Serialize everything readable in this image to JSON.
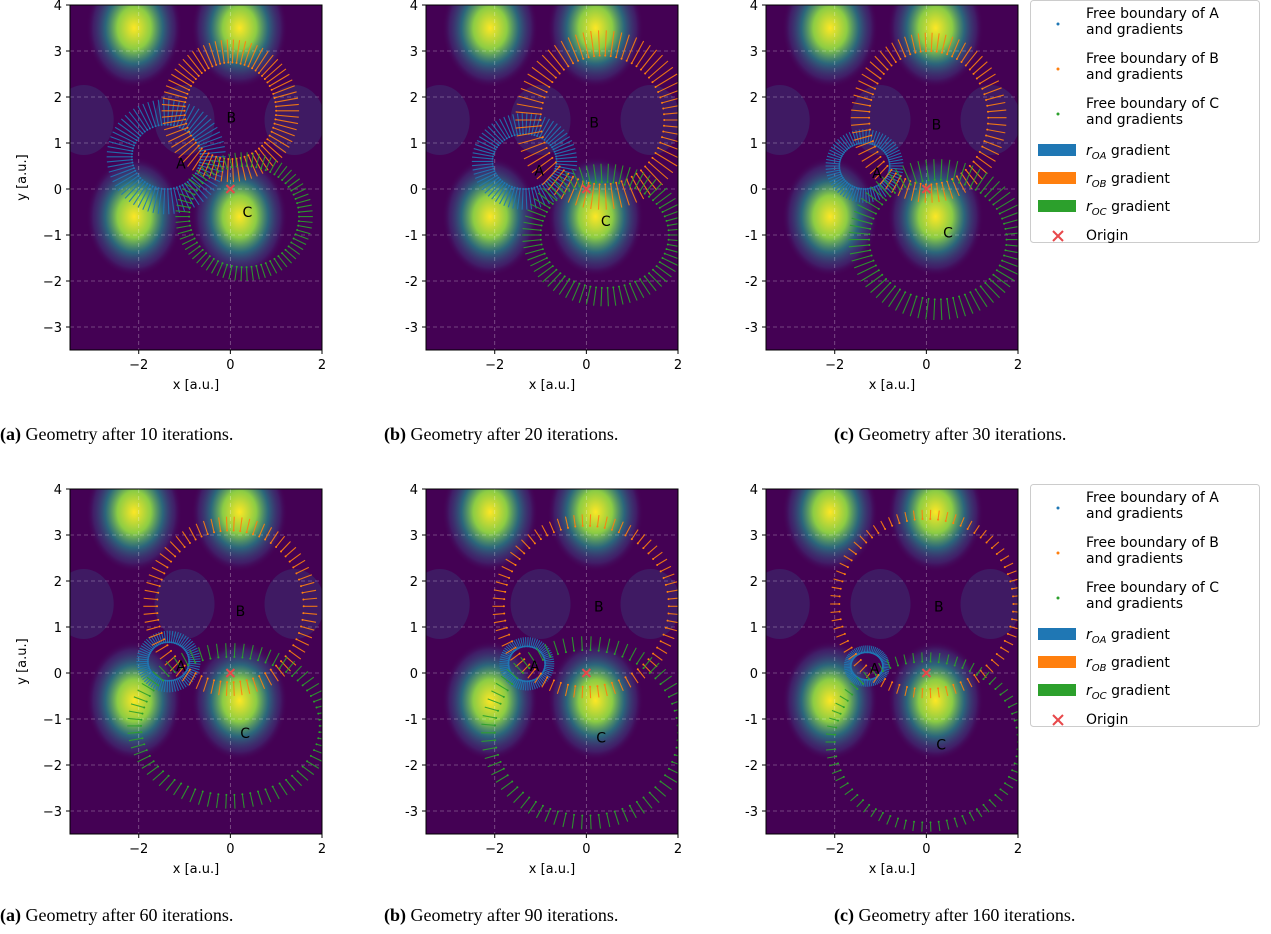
{
  "chart_data": [
    {
      "type": "scatter",
      "panel_tag": "(a)",
      "caption": "Geometry after 10 iterations.",
      "xlabel": "x [a.u.]",
      "ylabel": "y [a.u.]",
      "xlim": [
        -3.5,
        2
      ],
      "ylim": [
        -3.5,
        4
      ],
      "xticks": [
        "−2",
        "0",
        "2"
      ],
      "yticks": [
        "−3",
        "−2",
        "−1",
        "0",
        "1",
        "2",
        "3",
        "4"
      ],
      "points": {
        "A": [
          -1.25,
          0.55
        ],
        "B": [
          -0.15,
          1.55
        ],
        "C": [
          0.2,
          -0.5
        ]
      },
      "boundaries": [
        {
          "name": "A",
          "cx": -1.4,
          "cy": 0.7,
          "rx": 0.75,
          "ry": 0.7,
          "grad": 0.55
        },
        {
          "name": "B",
          "cx": 0.0,
          "cy": 1.7,
          "rx": 1.0,
          "ry": 1.05,
          "grad": 0.5
        },
        {
          "name": "C",
          "cx": 0.3,
          "cy": -0.6,
          "rx": 1.2,
          "ry": 1.1,
          "grad": 0.3
        }
      ]
    },
    {
      "type": "scatter",
      "panel_tag": "(b)",
      "caption": "Geometry after 20 iterations.",
      "xlabel": "x [a.u.]",
      "ylabel": "",
      "xlim": [
        -3.5,
        2
      ],
      "ylim": [
        -3.5,
        4
      ],
      "xticks": [
        "−2",
        "0",
        "2"
      ],
      "yticks": [
        "-3",
        "-2",
        "-1",
        "0",
        "1",
        "2",
        "3",
        "4"
      ],
      "points": {
        "A": [
          -1.2,
          0.4
        ],
        "B": [
          0.0,
          1.45
        ],
        "C": [
          0.25,
          -0.7
        ]
      },
      "boundaries": [
        {
          "name": "A",
          "cx": -1.35,
          "cy": 0.6,
          "rx": 0.7,
          "ry": 0.6,
          "grad": 0.45
        },
        {
          "name": "B",
          "cx": 0.35,
          "cy": 1.5,
          "rx": 1.35,
          "ry": 1.4,
          "grad": 0.55
        },
        {
          "name": "C",
          "cx": 0.4,
          "cy": -1.0,
          "rx": 1.4,
          "ry": 1.15,
          "grad": 0.4
        }
      ]
    },
    {
      "type": "scatter",
      "panel_tag": "(c)",
      "caption": "Geometry after 30 iterations.",
      "xlabel": "x [a.u.]",
      "ylabel": "",
      "xlim": [
        -3.5,
        2
      ],
      "ylim": [
        -3.5,
        4
      ],
      "xticks": [
        "−2",
        "0",
        "2"
      ],
      "yticks": [
        "-3",
        "-2",
        "-1",
        "0",
        "1",
        "2",
        "3",
        "4"
      ],
      "points": {
        "A": [
          -1.25,
          0.35
        ],
        "B": [
          0.05,
          1.4
        ],
        "C": [
          0.3,
          -0.95
        ]
      },
      "boundaries": [
        {
          "name": "A",
          "cx": -1.35,
          "cy": 0.5,
          "rx": 0.55,
          "ry": 0.5,
          "grad": 0.3
        },
        {
          "name": "B",
          "cx": 0.05,
          "cy": 1.55,
          "rx": 1.3,
          "ry": 1.45,
          "grad": 0.4
        },
        {
          "name": "C",
          "cx": 0.25,
          "cy": -1.1,
          "rx": 1.5,
          "ry": 1.3,
          "grad": 0.45
        }
      ]
    },
    {
      "type": "scatter",
      "panel_tag": "(a)",
      "caption": "Geometry after 60 iterations.",
      "xlabel": "x [a.u.]",
      "ylabel": "y [a.u.]",
      "xlim": [
        -3.5,
        2
      ],
      "ylim": [
        -3.5,
        4
      ],
      "xticks": [
        "−2",
        "0",
        "2"
      ],
      "yticks": [
        "−3",
        "−2",
        "−1",
        "0",
        "1",
        "2",
        "3",
        "4"
      ],
      "points": {
        "A": [
          -1.25,
          0.15
        ],
        "B": [
          0.05,
          1.35
        ],
        "C": [
          0.15,
          -1.3
        ]
      },
      "boundaries": [
        {
          "name": "A",
          "cx": -1.35,
          "cy": 0.25,
          "rx": 0.45,
          "ry": 0.42,
          "grad": 0.25
        },
        {
          "name": "B",
          "cx": 0.0,
          "cy": 1.45,
          "rx": 1.6,
          "ry": 1.65,
          "grad": 0.3
        },
        {
          "name": "C",
          "cx": 0.0,
          "cy": -1.15,
          "rx": 1.95,
          "ry": 1.5,
          "grad": 0.3
        }
      ]
    },
    {
      "type": "scatter",
      "panel_tag": "(b)",
      "caption": "Geometry after 90 iterations.",
      "xlabel": "x [a.u.]",
      "ylabel": "",
      "xlim": [
        -3.5,
        2
      ],
      "ylim": [
        -3.5,
        4
      ],
      "xticks": [
        "−2",
        "0",
        "2"
      ],
      "yticks": [
        "-3",
        "-2",
        "-1",
        "0",
        "1",
        "2",
        "3",
        "4"
      ],
      "points": {
        "A": [
          -1.3,
          0.15
        ],
        "B": [
          0.1,
          1.45
        ],
        "C": [
          0.15,
          -1.4
        ]
      },
      "boundaries": [
        {
          "name": "A",
          "cx": -1.3,
          "cy": 0.2,
          "rx": 0.4,
          "ry": 0.38,
          "grad": 0.2
        },
        {
          "name": "B",
          "cx": 0.0,
          "cy": 1.45,
          "rx": 1.8,
          "ry": 1.75,
          "grad": 0.25
        },
        {
          "name": "C",
          "cx": 0.0,
          "cy": -1.3,
          "rx": 2.0,
          "ry": 1.8,
          "grad": 0.3
        }
      ]
    },
    {
      "type": "scatter",
      "panel_tag": "(c)",
      "caption": "Geometry after 160 iterations.",
      "xlabel": "x [a.u.]",
      "ylabel": "",
      "xlim": [
        -3.5,
        2
      ],
      "ylim": [
        -3.5,
        4
      ],
      "xticks": [
        "−2",
        "0",
        "2"
      ],
      "yticks": [
        "-3",
        "-2",
        "-1",
        "0",
        "1",
        "2",
        "3",
        "4"
      ],
      "points": {
        "A": [
          -1.3,
          0.1
        ],
        "B": [
          0.1,
          1.45
        ],
        "C": [
          0.15,
          -1.55
        ]
      },
      "boundaries": [
        {
          "name": "A",
          "cx": -1.3,
          "cy": 0.15,
          "rx": 0.35,
          "ry": 0.3,
          "grad": 0.15
        },
        {
          "name": "B",
          "cx": 0.0,
          "cy": 1.5,
          "rx": 1.9,
          "ry": 1.85,
          "grad": 0.2
        },
        {
          "name": "C",
          "cx": 0.0,
          "cy": -1.5,
          "rx": 2.0,
          "ry": 1.75,
          "grad": 0.2
        }
      ]
    }
  ],
  "legend": {
    "entries": [
      {
        "label": "Free boundary of A",
        "sub": "and gradients",
        "kind": "dot",
        "color": "#1f77b4"
      },
      {
        "label": "Free boundary of B",
        "sub": "and gradients",
        "kind": "dot",
        "color": "#ff7f0e"
      },
      {
        "label": "Free boundary of C",
        "sub": "and gradients",
        "kind": "dot",
        "color": "#2ca02c"
      },
      {
        "label": "r",
        "sub_italic": "OA",
        "suffix": " gradient",
        "kind": "bar",
        "color": "#1f77b4"
      },
      {
        "label": "r",
        "sub_italic": "OB",
        "suffix": " gradient",
        "kind": "bar",
        "color": "#ff7f0e"
      },
      {
        "label": "r",
        "sub_italic": "OC",
        "suffix": " gradient",
        "kind": "bar",
        "color": "#2ca02c"
      },
      {
        "label": "Origin",
        "kind": "cross",
        "color": "#e8484b"
      }
    ]
  },
  "colors": {
    "A": "#1f77b4",
    "B": "#ff7f0e",
    "C": "#2ca02c",
    "origin": "#e8484b",
    "dark": "#440154",
    "bright": "#fde725"
  },
  "origin_label": "Origin"
}
